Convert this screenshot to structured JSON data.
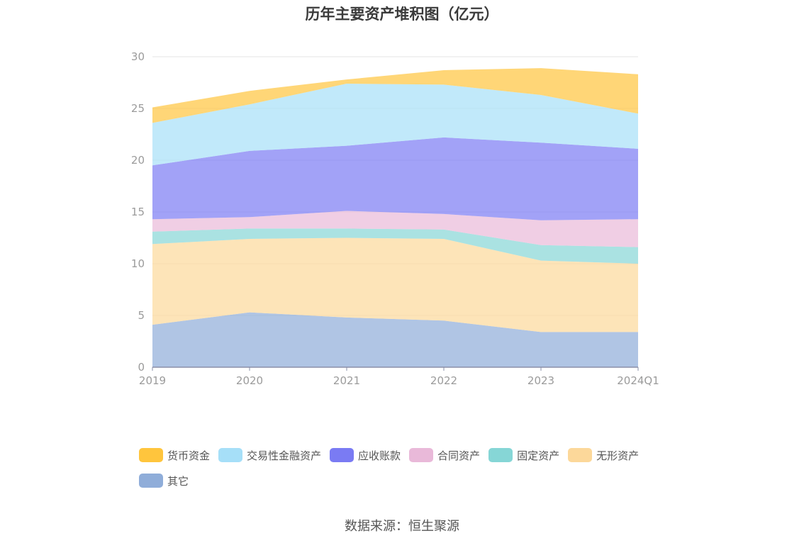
{
  "title": "历年主要资产堆积图（亿元）",
  "source": "数据来源：恒生聚源",
  "chart_data": {
    "type": "area",
    "stacked": true,
    "categories": [
      "2019",
      "2020",
      "2021",
      "2022",
      "2023",
      "2024Q1"
    ],
    "ylim": [
      0,
      30
    ],
    "yticks": [
      0,
      5,
      10,
      15,
      20,
      25,
      30
    ],
    "grid": true,
    "legend_position": "bottom",
    "series": [
      {
        "name": "其它",
        "color": "#8fadd9",
        "values": [
          4.1,
          5.3,
          4.8,
          4.5,
          3.4,
          3.4
        ]
      },
      {
        "name": "无形资产",
        "color": "#fcd89a",
        "values": [
          7.8,
          7.1,
          7.7,
          7.9,
          6.9,
          6.6
        ]
      },
      {
        "name": "固定资产",
        "color": "#86d6d6",
        "values": [
          1.2,
          1.0,
          0.9,
          0.9,
          1.5,
          1.6
        ]
      },
      {
        "name": "合同资产",
        "color": "#e9b9d9",
        "values": [
          1.2,
          1.1,
          1.7,
          1.5,
          2.4,
          2.7
        ]
      },
      {
        "name": "应收账款",
        "color": "#7a7bf3",
        "values": [
          5.2,
          6.4,
          6.3,
          7.4,
          7.5,
          6.8
        ]
      },
      {
        "name": "交易性金融资产",
        "color": "#a6dff8",
        "values": [
          4.1,
          4.5,
          6.0,
          5.1,
          4.6,
          3.4
        ]
      },
      {
        "name": "货币资金",
        "color": "#ffc53d",
        "values": [
          1.5,
          1.3,
          0.4,
          1.4,
          2.6,
          3.8
        ]
      }
    ]
  },
  "legend_order": [
    "货币资金",
    "交易性金融资产",
    "应收账款",
    "合同资产",
    "固定资产",
    "无形资产",
    "其它"
  ]
}
